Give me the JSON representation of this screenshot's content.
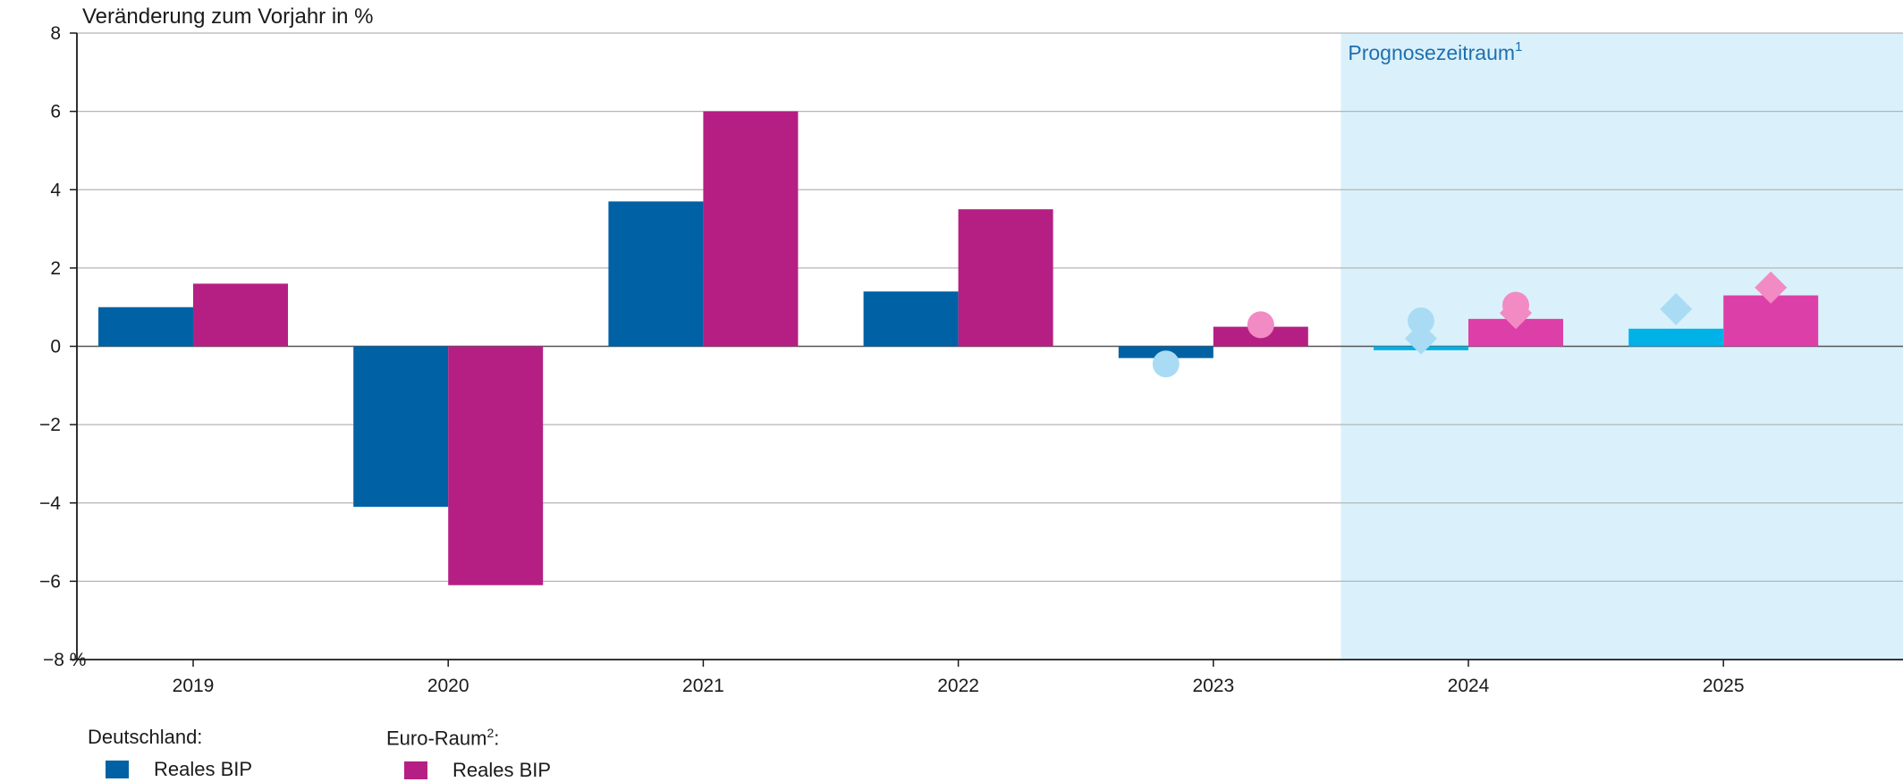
{
  "chart_data": {
    "type": "bar",
    "ylabel": "Veränderung zum Vorjahr in %",
    "ylim": [
      -8,
      8
    ],
    "yticks": [
      8,
      6,
      4,
      2,
      0,
      -2,
      -4,
      -6,
      -8
    ],
    "ytick_labels": [
      "8",
      "6",
      "4",
      "2",
      "0",
      "−2",
      "−4",
      "−6",
      "−8 %"
    ],
    "categories": [
      "2019",
      "2020",
      "2021",
      "2022",
      "2023",
      "2024",
      "2025"
    ],
    "forecast": {
      "label": "Prognosezeitraum",
      "footnote": "1",
      "from_category": "2024"
    },
    "series": [
      {
        "name": "Deutschland: Reales BIP",
        "color": "#0062a4",
        "forecast_color": "#00b2e8",
        "values": [
          1.0,
          -4.1,
          3.7,
          1.4,
          -0.3,
          -0.1,
          0.45
        ]
      },
      {
        "name": "Euro-Raum: Reales BIP",
        "color": "#b51f83",
        "forecast_color": "#dd3fa8",
        "values": [
          1.6,
          -6.1,
          6.0,
          3.5,
          0.5,
          0.7,
          1.3
        ]
      }
    ],
    "markers": [
      {
        "series": "Deutschland",
        "shape": "circle",
        "color": "#a9dcf4",
        "values": [
          null,
          null,
          null,
          null,
          -0.45,
          0.65,
          null
        ]
      },
      {
        "series": "Deutschland",
        "shape": "diamond",
        "color": "#a9dcf4",
        "values": [
          null,
          null,
          null,
          null,
          null,
          0.2,
          0.95
        ]
      },
      {
        "series": "Euro-Raum",
        "shape": "circle",
        "color": "#f28ac4",
        "values": [
          null,
          null,
          null,
          null,
          0.55,
          1.05,
          null
        ]
      },
      {
        "series": "Euro-Raum",
        "shape": "diamond",
        "color": "#f28ac4",
        "values": [
          null,
          null,
          null,
          null,
          null,
          0.85,
          1.5
        ]
      }
    ],
    "grid": true,
    "legend_position": "bottom-left"
  },
  "legend": {
    "groups": [
      {
        "heading": "Deutschland:",
        "heading_sup": "",
        "item": "Reales BIP",
        "color": "#0062a4"
      },
      {
        "heading": "Euro-Raum",
        "heading_sup": "2",
        "heading_suffix": ":",
        "item": "Reales BIP",
        "color": "#b51f83"
      }
    ]
  }
}
